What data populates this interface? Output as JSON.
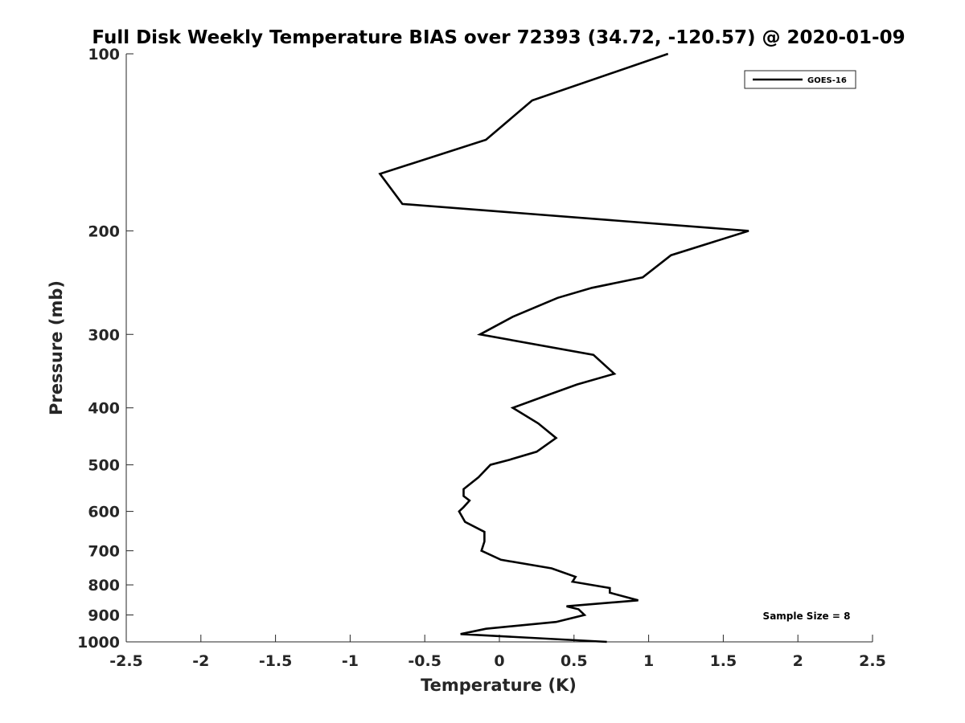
{
  "chart_data": {
    "type": "line",
    "title": "Full Disk Weekly Temperature BIAS over 72393 (34.72, -120.57) @ 2020-01-09",
    "xlabel": "Temperature (K)",
    "ylabel": "Pressure (mb)",
    "xlim": [
      -2.5,
      2.5
    ],
    "ylim": [
      100,
      1000
    ],
    "yscale": "log",
    "yreversed": true,
    "grid": false,
    "legend_position": "top-right",
    "xticks": [
      "-2.5",
      "-2",
      "-1.5",
      "-1",
      "-0.5",
      "0",
      "0.5",
      "1",
      "1.5",
      "2",
      "2.5"
    ],
    "xtick_values": [
      -2.5,
      -2,
      -1.5,
      -1,
      -0.5,
      0,
      0.5,
      1,
      1.5,
      2,
      2.5
    ],
    "yticks": [
      "100",
      "200",
      "300",
      "400",
      "500",
      "600",
      "700",
      "800",
      "900",
      "1000"
    ],
    "ytick_values": [
      100,
      200,
      300,
      400,
      500,
      600,
      700,
      800,
      900,
      1000
    ],
    "annotation": "Sample Size = 8",
    "series": [
      {
        "name": "GOES-16",
        "color": "#000000",
        "points": [
          {
            "x": 1.13,
            "p": 100
          },
          {
            "x": 0.22,
            "p": 120
          },
          {
            "x": -0.09,
            "p": 140
          },
          {
            "x": -0.8,
            "p": 160
          },
          {
            "x": -0.65,
            "p": 180
          },
          {
            "x": 1.67,
            "p": 200
          },
          {
            "x": 1.15,
            "p": 220
          },
          {
            "x": 0.96,
            "p": 240
          },
          {
            "x": 0.62,
            "p": 250
          },
          {
            "x": 0.39,
            "p": 260
          },
          {
            "x": 0.09,
            "p": 280
          },
          {
            "x": -0.13,
            "p": 300
          },
          {
            "x": 0.63,
            "p": 325
          },
          {
            "x": 0.77,
            "p": 350
          },
          {
            "x": 0.52,
            "p": 365
          },
          {
            "x": 0.33,
            "p": 380
          },
          {
            "x": 0.09,
            "p": 400
          },
          {
            "x": 0.26,
            "p": 425
          },
          {
            "x": 0.38,
            "p": 450
          },
          {
            "x": 0.25,
            "p": 475
          },
          {
            "x": 0.07,
            "p": 490
          },
          {
            "x": -0.06,
            "p": 500
          },
          {
            "x": -0.14,
            "p": 525
          },
          {
            "x": -0.24,
            "p": 550
          },
          {
            "x": -0.24,
            "p": 565
          },
          {
            "x": -0.2,
            "p": 575
          },
          {
            "x": -0.24,
            "p": 590
          },
          {
            "x": -0.27,
            "p": 600
          },
          {
            "x": -0.23,
            "p": 625
          },
          {
            "x": -0.1,
            "p": 650
          },
          {
            "x": -0.1,
            "p": 675
          },
          {
            "x": -0.12,
            "p": 700
          },
          {
            "x": 0.01,
            "p": 725
          },
          {
            "x": 0.35,
            "p": 750
          },
          {
            "x": 0.51,
            "p": 775
          },
          {
            "x": 0.49,
            "p": 790
          },
          {
            "x": 0.74,
            "p": 810
          },
          {
            "x": 0.74,
            "p": 825
          },
          {
            "x": 0.93,
            "p": 850
          },
          {
            "x": 0.45,
            "p": 870
          },
          {
            "x": 0.53,
            "p": 880
          },
          {
            "x": 0.57,
            "p": 900
          },
          {
            "x": 0.38,
            "p": 925
          },
          {
            "x": -0.09,
            "p": 950
          },
          {
            "x": -0.26,
            "p": 970
          },
          {
            "x": 0.72,
            "p": 1000
          }
        ]
      }
    ]
  }
}
